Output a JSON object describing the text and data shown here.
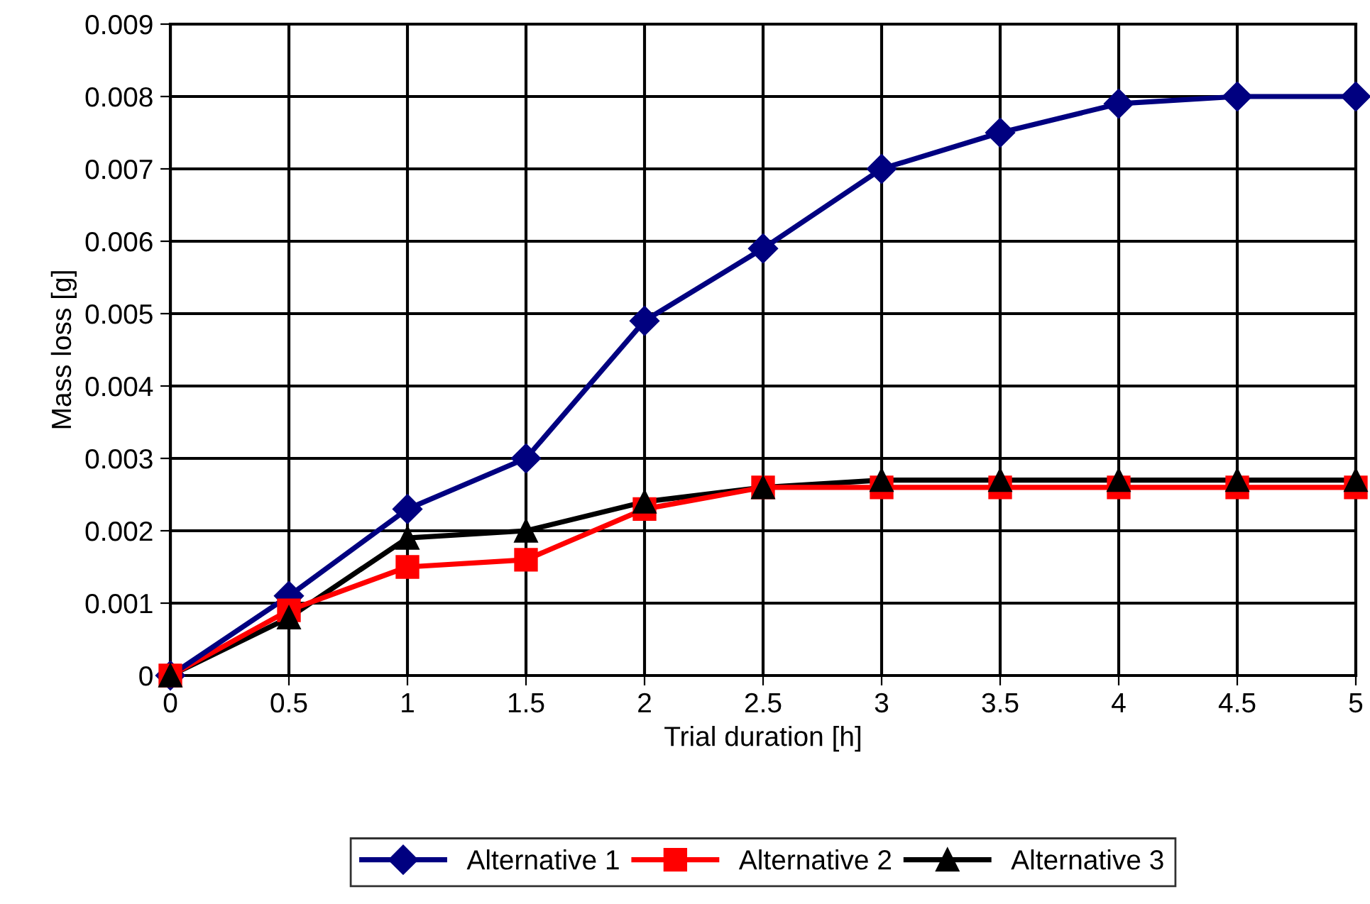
{
  "chart_data": {
    "type": "line",
    "xlabel": "Trial duration [h]",
    "ylabel": "Mass loss [g]",
    "x": [
      0,
      0.5,
      1,
      1.5,
      2,
      2.5,
      3,
      3.5,
      4,
      4.5,
      5
    ],
    "series": [
      {
        "name": "Alternative 1",
        "color": "#000080",
        "marker": "diamond",
        "values": [
          0,
          0.0011,
          0.0023,
          0.003,
          0.0049,
          0.0059,
          0.007,
          0.0075,
          0.0079,
          0.008,
          0.008
        ]
      },
      {
        "name": "Alternative 2",
        "color": "#ff0000",
        "marker": "square",
        "values": [
          0,
          0.0009,
          0.0015,
          0.0016,
          0.0023,
          0.0026,
          0.0026,
          0.0026,
          0.0026,
          0.0026,
          0.0026
        ]
      },
      {
        "name": "Alternative 3",
        "color": "#000000",
        "marker": "triangle",
        "values": [
          0,
          0.0008,
          0.0019,
          0.002,
          0.0024,
          0.0026,
          0.0027,
          0.0027,
          0.0027,
          0.0027,
          0.0027
        ]
      }
    ],
    "xlim": [
      0,
      5
    ],
    "xticks": [
      0,
      0.5,
      1,
      1.5,
      2,
      2.5,
      3,
      3.5,
      4,
      4.5,
      5
    ],
    "ylim": [
      0,
      0.009
    ],
    "yticks": [
      0,
      0.001,
      0.002,
      0.003,
      0.004,
      0.005,
      0.006,
      0.007,
      0.008,
      0.009
    ],
    "grid": true,
    "legend": "bottom",
    "line_style": "solid"
  }
}
